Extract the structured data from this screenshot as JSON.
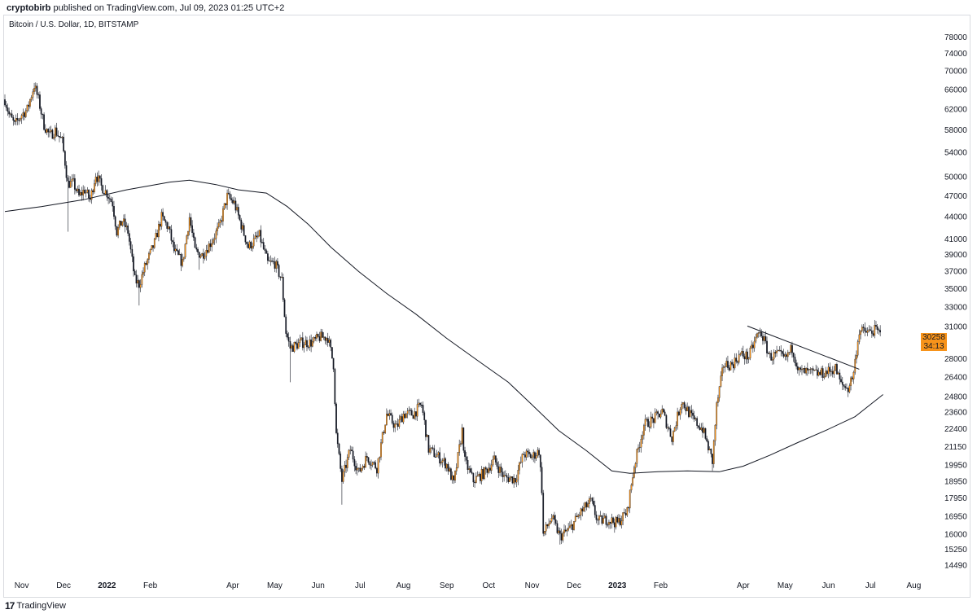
{
  "header": {
    "author": "cryptobirb",
    "published_text": "published on TradingView.com, Jul 09, 2023 01:25 UTC+2"
  },
  "symbol_label": "Bitcoin / U.S. Dollar, 1D, BITSTAMP",
  "last_price": {
    "value": "30258",
    "countdown": "34:13"
  },
  "footer": {
    "brand_mark": "17",
    "brand_name": "TradingView"
  },
  "colors": {
    "up_candle": "#f7931a",
    "down_candle": "#131722",
    "ma_line": "#131722",
    "badge": "#f7931a"
  },
  "chart_data": {
    "type": "candlestick",
    "title": "Bitcoin / U.S. Dollar, 1D, BITSTAMP",
    "y_scale": "log",
    "ylim": [
      14000,
      83000
    ],
    "y_ticks": [
      78000,
      74000,
      70000,
      66000,
      62000,
      58000,
      54000,
      50000,
      47000,
      44000,
      41000,
      39000,
      37000,
      35000,
      33000,
      31000,
      28000,
      26400,
      24800,
      23600,
      22400,
      21150,
      19950,
      18950,
      17950,
      16950,
      16000,
      15250,
      14490
    ],
    "x_range": [
      "2021-10-20",
      "2023-08-20"
    ],
    "x_ticks": [
      {
        "label": "Nov",
        "date": "2021-11-01",
        "bold": false
      },
      {
        "label": "Dec",
        "date": "2021-12-01",
        "bold": false
      },
      {
        "label": "2022",
        "date": "2022-01-01",
        "bold": true
      },
      {
        "label": "Feb",
        "date": "2022-02-01",
        "bold": false
      },
      {
        "label": "Apr",
        "date": "2022-04-01",
        "bold": false
      },
      {
        "label": "May",
        "date": "2022-05-01",
        "bold": false
      },
      {
        "label": "Jun",
        "date": "2022-06-01",
        "bold": false
      },
      {
        "label": "Jul",
        "date": "2022-07-01",
        "bold": false
      },
      {
        "label": "Aug",
        "date": "2022-08-01",
        "bold": false
      },
      {
        "label": "Sep",
        "date": "2022-09-01",
        "bold": false
      },
      {
        "label": "Oct",
        "date": "2022-10-01",
        "bold": false
      },
      {
        "label": "Nov",
        "date": "2022-11-01",
        "bold": false
      },
      {
        "label": "Dec",
        "date": "2022-12-01",
        "bold": false
      },
      {
        "label": "2023",
        "date": "2023-01-01",
        "bold": true
      },
      {
        "label": "Feb",
        "date": "2023-02-01",
        "bold": false
      },
      {
        "label": "Apr",
        "date": "2023-04-01",
        "bold": false
      },
      {
        "label": "May",
        "date": "2023-05-01",
        "bold": false
      },
      {
        "label": "Jun",
        "date": "2023-06-01",
        "bold": false
      },
      {
        "label": "Jul",
        "date": "2023-07-01",
        "bold": false
      },
      {
        "label": "Aug",
        "date": "2023-08-01",
        "bold": false
      }
    ],
    "close_path": [
      [
        "2021-10-20",
        64000
      ],
      [
        "2021-10-23",
        61000
      ],
      [
        "2021-10-27",
        59000
      ],
      [
        "2021-11-01",
        61000
      ],
      [
        "2021-11-05",
        62000
      ],
      [
        "2021-11-10",
        67000
      ],
      [
        "2021-11-13",
        64000
      ],
      [
        "2021-11-17",
        59000
      ],
      [
        "2021-11-21",
        57000
      ],
      [
        "2021-11-25",
        58000
      ],
      [
        "2021-11-30",
        56000
      ],
      [
        "2021-12-04",
        49000
      ],
      [
        "2021-12-08",
        49000
      ],
      [
        "2021-12-12",
        47000
      ],
      [
        "2021-12-16",
        48000
      ],
      [
        "2021-12-20",
        46500
      ],
      [
        "2021-12-24",
        50500
      ],
      [
        "2021-12-28",
        48500
      ],
      [
        "2022-01-01",
        47500
      ],
      [
        "2022-01-05",
        46000
      ],
      [
        "2022-01-08",
        42000
      ],
      [
        "2022-01-12",
        43500
      ],
      [
        "2022-01-16",
        42000
      ],
      [
        "2022-01-21",
        36000
      ],
      [
        "2022-01-24",
        35500
      ],
      [
        "2022-01-28",
        37500
      ],
      [
        "2022-02-04",
        40500
      ],
      [
        "2022-02-09",
        44000
      ],
      [
        "2022-02-14",
        42500
      ],
      [
        "2022-02-18",
        39500
      ],
      [
        "2022-02-24",
        38000
      ],
      [
        "2022-03-01",
        44000
      ],
      [
        "2022-03-05",
        39500
      ],
      [
        "2022-03-10",
        39000
      ],
      [
        "2022-03-16",
        40500
      ],
      [
        "2022-03-22",
        42500
      ],
      [
        "2022-03-28",
        47000
      ],
      [
        "2022-04-02",
        46000
      ],
      [
        "2022-04-06",
        43500
      ],
      [
        "2022-04-12",
        40000
      ],
      [
        "2022-04-20",
        41500
      ],
      [
        "2022-04-26",
        38000
      ],
      [
        "2022-05-01",
        38000
      ],
      [
        "2022-05-06",
        36000
      ],
      [
        "2022-05-09",
        30500
      ],
      [
        "2022-05-12",
        29000
      ],
      [
        "2022-05-20",
        29500
      ],
      [
        "2022-05-28",
        29500
      ],
      [
        "2022-06-02",
        30000
      ],
      [
        "2022-06-08",
        30000
      ],
      [
        "2022-06-12",
        27500
      ],
      [
        "2022-06-14",
        22000
      ],
      [
        "2022-06-18",
        19000
      ],
      [
        "2022-06-24",
        21000
      ],
      [
        "2022-06-30",
        19500
      ],
      [
        "2022-07-06",
        20500
      ],
      [
        "2022-07-13",
        19800
      ],
      [
        "2022-07-20",
        23500
      ],
      [
        "2022-07-27",
        22500
      ],
      [
        "2022-08-01",
        23500
      ],
      [
        "2022-08-08",
        23500
      ],
      [
        "2022-08-14",
        24200
      ],
      [
        "2022-08-19",
        21000
      ],
      [
        "2022-08-26",
        20500
      ],
      [
        "2022-09-01",
        20000
      ],
      [
        "2022-09-06",
        18800
      ],
      [
        "2022-09-12",
        22300
      ],
      [
        "2022-09-14",
        20200
      ],
      [
        "2022-09-20",
        19000
      ],
      [
        "2022-09-28",
        19500
      ],
      [
        "2022-10-05",
        20300
      ],
      [
        "2022-10-12",
        19200
      ],
      [
        "2022-10-20",
        19100
      ],
      [
        "2022-10-26",
        20700
      ],
      [
        "2022-11-01",
        20500
      ],
      [
        "2022-11-06",
        20900
      ],
      [
        "2022-11-08",
        18500
      ],
      [
        "2022-11-09",
        16000
      ],
      [
        "2022-11-15",
        16900
      ],
      [
        "2022-11-21",
        15900
      ],
      [
        "2022-11-28",
        16300
      ],
      [
        "2022-12-05",
        17100
      ],
      [
        "2022-12-13",
        17800
      ],
      [
        "2022-12-18",
        16700
      ],
      [
        "2022-12-25",
        16800
      ],
      [
        "2023-01-01",
        16600
      ],
      [
        "2023-01-08",
        17200
      ],
      [
        "2023-01-13",
        19900
      ],
      [
        "2023-01-20",
        22700
      ],
      [
        "2023-01-27",
        23100
      ],
      [
        "2023-02-02",
        23700
      ],
      [
        "2023-02-09",
        21800
      ],
      [
        "2023-02-16",
        24500
      ],
      [
        "2023-02-24",
        23100
      ],
      [
        "2023-03-03",
        22400
      ],
      [
        "2023-03-10",
        20200
      ],
      [
        "2023-03-13",
        24100
      ],
      [
        "2023-03-18",
        27500
      ],
      [
        "2023-03-24",
        27500
      ],
      [
        "2023-03-30",
        28400
      ],
      [
        "2023-04-05",
        28200
      ],
      [
        "2023-04-11",
        30200
      ],
      [
        "2023-04-14",
        30400
      ],
      [
        "2023-04-20",
        28200
      ],
      [
        "2023-04-26",
        28400
      ],
      [
        "2023-05-01",
        28000
      ],
      [
        "2023-05-06",
        29000
      ],
      [
        "2023-05-11",
        26900
      ],
      [
        "2023-05-18",
        26800
      ],
      [
        "2023-05-26",
        26700
      ],
      [
        "2023-06-01",
        26900
      ],
      [
        "2023-06-06",
        27200
      ],
      [
        "2023-06-10",
        25800
      ],
      [
        "2023-06-15",
        25500
      ],
      [
        "2023-06-19",
        26800
      ],
      [
        "2023-06-21",
        28800
      ],
      [
        "2023-06-23",
        30600
      ],
      [
        "2023-06-30",
        30500
      ],
      [
        "2023-07-05",
        30700
      ],
      [
        "2023-07-08",
        30258
      ]
    ],
    "spikes": [
      {
        "date": "2021-12-04",
        "low": 42000
      },
      {
        "date": "2022-01-24",
        "low": 33200
      },
      {
        "date": "2022-03-08",
        "low": 37200
      },
      {
        "date": "2022-05-12",
        "low": 26000
      },
      {
        "date": "2022-06-18",
        "low": 17600
      },
      {
        "date": "2022-11-21",
        "low": 15500
      },
      {
        "date": "2023-03-10",
        "low": 19600
      },
      {
        "date": "2023-06-15",
        "low": 24800
      }
    ],
    "ma_line": [
      [
        "2021-10-20",
        44800
      ],
      [
        "2021-11-15",
        45500
      ],
      [
        "2021-12-15",
        46500
      ],
      [
        "2022-01-15",
        48000
      ],
      [
        "2022-02-15",
        49200
      ],
      [
        "2022-03-01",
        49500
      ],
      [
        "2022-03-20",
        48800
      ],
      [
        "2022-04-05",
        48000
      ],
      [
        "2022-04-25",
        47500
      ],
      [
        "2022-05-10",
        45500
      ],
      [
        "2022-05-25",
        43000
      ],
      [
        "2022-06-10",
        40000
      ],
      [
        "2022-06-30",
        37000
      ],
      [
        "2022-07-20",
        34500
      ],
      [
        "2022-08-10",
        32300
      ],
      [
        "2022-09-01",
        29900
      ],
      [
        "2022-09-25",
        27700
      ],
      [
        "2022-10-15",
        26000
      ],
      [
        "2022-11-01",
        24200
      ],
      [
        "2022-11-20",
        22300
      ],
      [
        "2022-12-10",
        20900
      ],
      [
        "2022-12-28",
        19600
      ],
      [
        "2023-01-10",
        19450
      ],
      [
        "2023-01-30",
        19550
      ],
      [
        "2023-02-20",
        19600
      ],
      [
        "2023-03-15",
        19550
      ],
      [
        "2023-04-01",
        19900
      ],
      [
        "2023-04-20",
        20600
      ],
      [
        "2023-05-10",
        21450
      ],
      [
        "2023-05-30",
        22300
      ],
      [
        "2023-06-20",
        23300
      ],
      [
        "2023-07-10",
        25000
      ]
    ],
    "trendline": [
      [
        "2023-04-04",
        31100
      ],
      [
        "2023-06-23",
        27100
      ]
    ]
  }
}
